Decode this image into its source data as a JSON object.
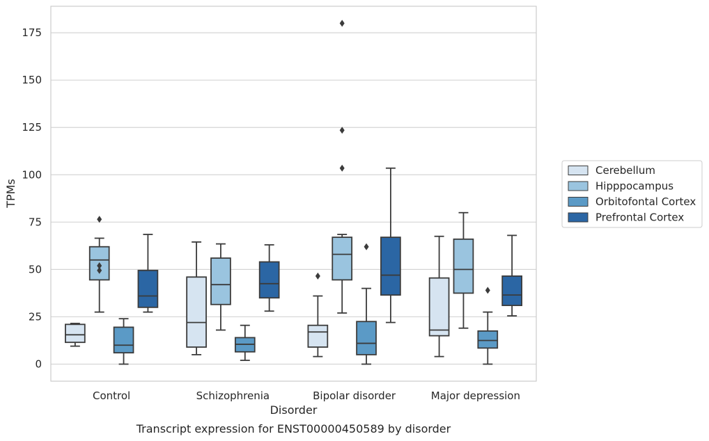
{
  "caption": "Transcript expression for ENST00000450589 by disorder",
  "chart_data": {
    "type": "box",
    "title": "",
    "xlabel": "Disorder",
    "ylabel": "TPMs",
    "ylim": [
      -9,
      189
    ],
    "yticks": [
      0,
      25,
      50,
      75,
      100,
      125,
      150,
      175
    ],
    "grid": "horizontal",
    "legend_position": "outside-right",
    "categories": [
      "Control",
      "Schizophrenia",
      "Bipolar disorder",
      "Major depression"
    ],
    "series": [
      {
        "name": "Cerebellum",
        "color": "#d6e4f1",
        "boxes": [
          {
            "whisker_low": 9.5,
            "q1": 11.5,
            "median": 15.5,
            "q3": 21,
            "whisker_high": 21.5,
            "outliers": []
          },
          {
            "whisker_low": 5,
            "q1": 9,
            "median": 22,
            "q3": 46,
            "whisker_high": 64.5,
            "outliers": []
          },
          {
            "whisker_low": 4,
            "q1": 9,
            "median": 17,
            "q3": 20.5,
            "whisker_high": 36,
            "outliers": [
              46.5
            ]
          },
          {
            "whisker_low": 4,
            "q1": 15,
            "median": 18,
            "q3": 45.5,
            "whisker_high": 67.5,
            "outliers": []
          }
        ]
      },
      {
        "name": "Hipppocampus",
        "color": "#9ac4df",
        "boxes": [
          {
            "whisker_low": 27.5,
            "q1": 44.5,
            "median": 55,
            "q3": 62,
            "whisker_high": 66.5,
            "outliers": [
              76.5,
              52,
              49.5
            ]
          },
          {
            "whisker_low": 18,
            "q1": 31.5,
            "median": 42,
            "q3": 56,
            "whisker_high": 63.5,
            "outliers": []
          },
          {
            "whisker_low": 27,
            "q1": 44.5,
            "median": 58,
            "q3": 67,
            "whisker_high": 68.5,
            "outliers": [
              180,
              123.5,
              103.5
            ]
          },
          {
            "whisker_low": 19,
            "q1": 37.5,
            "median": 50,
            "q3": 66,
            "whisker_high": 80,
            "outliers": []
          }
        ]
      },
      {
        "name": "Orbitofontal Cortex",
        "color": "#5b9ac6",
        "boxes": [
          {
            "whisker_low": 0,
            "q1": 6,
            "median": 10,
            "q3": 19.5,
            "whisker_high": 24,
            "outliers": []
          },
          {
            "whisker_low": 2,
            "q1": 6.5,
            "median": 10.5,
            "q3": 14,
            "whisker_high": 20.5,
            "outliers": []
          },
          {
            "whisker_low": 0,
            "q1": 5,
            "median": 11,
            "q3": 22.5,
            "whisker_high": 40,
            "outliers": [
              62
            ]
          },
          {
            "whisker_low": 0,
            "q1": 8.5,
            "median": 12.5,
            "q3": 17.5,
            "whisker_high": 27.5,
            "outliers": [
              39
            ]
          }
        ]
      },
      {
        "name": "Prefrontal Cortex",
        "color": "#2b66a4",
        "boxes": [
          {
            "whisker_low": 27.5,
            "q1": 30,
            "median": 36,
            "q3": 49.5,
            "whisker_high": 68.5,
            "outliers": []
          },
          {
            "whisker_low": 28,
            "q1": 35,
            "median": 42.5,
            "q3": 54,
            "whisker_high": 63,
            "outliers": []
          },
          {
            "whisker_low": 22,
            "q1": 36.5,
            "median": 47,
            "q3": 67,
            "whisker_high": 103.5,
            "outliers": []
          },
          {
            "whisker_low": 25.5,
            "q1": 31,
            "median": 36.5,
            "q3": 46.5,
            "whisker_high": 68,
            "outliers": []
          }
        ]
      }
    ]
  }
}
